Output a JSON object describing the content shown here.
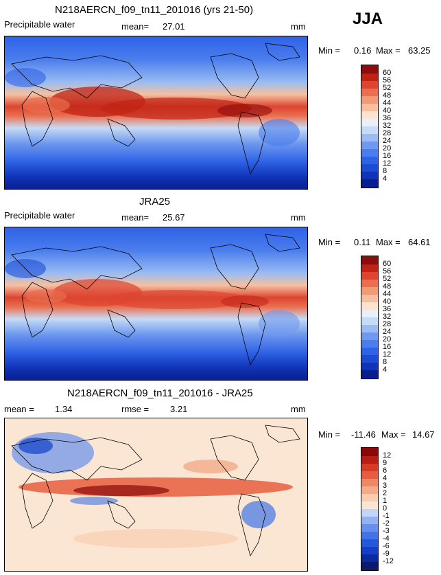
{
  "season": "JJA",
  "panels": [
    {
      "id": "model",
      "title": "N218AERCN_f09_tn11_201016 (yrs 21-50)",
      "variable": "Precipitable water",
      "mean_label": "mean=",
      "mean_value": "27.01",
      "units": "mm",
      "min_label": "Min =",
      "min_value": "0.16",
      "max_label": "Max =",
      "max_value": "63.25"
    },
    {
      "id": "obs",
      "title": "JRA25",
      "variable": "Precipitable water",
      "mean_label": "mean=",
      "mean_value": "25.67",
      "units": "mm",
      "min_label": "Min =",
      "min_value": "0.11",
      "max_label": "Max =",
      "max_value": "64.61"
    },
    {
      "id": "diff",
      "title": "N218AERCN_f09_tn11_201016 - JRA25",
      "mean_label": "mean =",
      "mean_value": "1.34",
      "rmse_label": "rmse =",
      "rmse_value": "3.21",
      "units": "mm",
      "min_label": "Min =",
      "min_value": "-11.46",
      "max_label": "Max =",
      "max_value": "14.67"
    }
  ],
  "chart_data": [
    {
      "type": "heatmap",
      "title": "N218AERCN_f09_tn11_201016 (yrs 21-50)",
      "variable": "Precipitable water",
      "units": "mm",
      "season": "JJA",
      "mean": 27.01,
      "min": 0.16,
      "max": 63.25,
      "colorbar_levels": [
        4,
        8,
        12,
        16,
        20,
        24,
        28,
        32,
        36,
        40,
        44,
        48,
        52,
        56,
        60
      ],
      "colorbar_colors": [
        "#0a1f8f",
        "#1034b8",
        "#1a4cd6",
        "#2f62e6",
        "#4a7ded",
        "#6f99ef",
        "#9abcf2",
        "#c6dbf5",
        "#e8f0fa",
        "#fbe3cf",
        "#f6c0a0",
        "#f19a76",
        "#ea6e4f",
        "#dd4530",
        "#c02316",
        "#8e0c0c"
      ]
    },
    {
      "type": "heatmap",
      "title": "JRA25",
      "variable": "Precipitable water",
      "units": "mm",
      "season": "JJA",
      "mean": 25.67,
      "min": 0.11,
      "max": 64.61,
      "colorbar_levels": [
        4,
        8,
        12,
        16,
        20,
        24,
        28,
        32,
        36,
        40,
        44,
        48,
        52,
        56,
        60
      ],
      "colorbar_colors": [
        "#0a1f8f",
        "#1034b8",
        "#1a4cd6",
        "#2f62e6",
        "#4a7ded",
        "#6f99ef",
        "#9abcf2",
        "#c6dbf5",
        "#e8f0fa",
        "#fbe3cf",
        "#f6c0a0",
        "#f19a76",
        "#ea6e4f",
        "#dd4530",
        "#c02316",
        "#8e0c0c"
      ]
    },
    {
      "type": "heatmap",
      "title": "N218AERCN_f09_tn11_201016 - JRA25",
      "units": "mm",
      "season": "JJA",
      "mean": 1.34,
      "rmse": 3.21,
      "min": -11.46,
      "max": 14.67,
      "colorbar_levels": [
        -12,
        -9,
        -6,
        -4,
        -3,
        -2,
        -1,
        0,
        1,
        2,
        3,
        4,
        6,
        9,
        12
      ],
      "colorbar_colors": [
        "#0a1a6e",
        "#0b2a9e",
        "#1240c8",
        "#2559dc",
        "#4274e6",
        "#6690ec",
        "#93b2f1",
        "#c3d6f6",
        "#fbe6d3",
        "#f8cdb0",
        "#f3ab88",
        "#ee8762",
        "#e65e3f",
        "#d73b24",
        "#b81c12",
        "#8a0808"
      ]
    }
  ]
}
